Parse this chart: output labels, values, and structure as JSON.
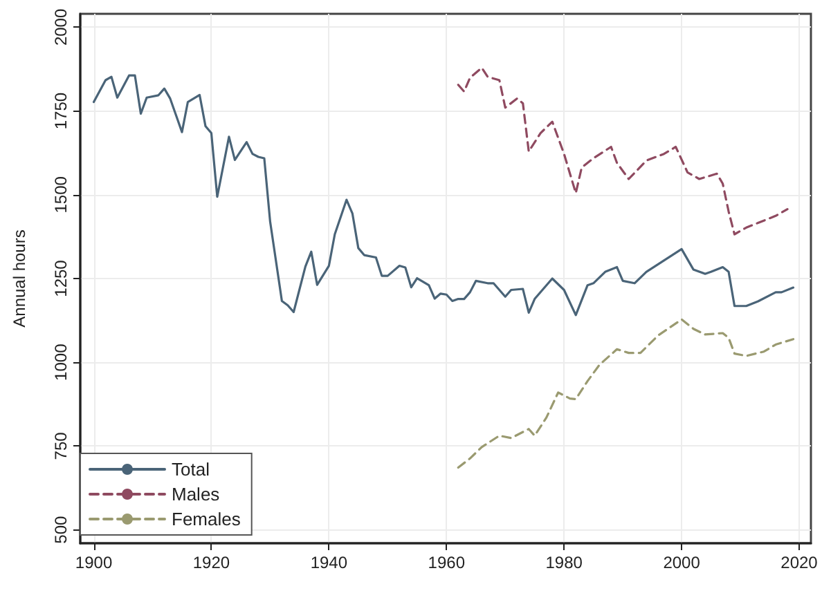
{
  "chart_data": {
    "type": "line",
    "ylabel": "Annual hours",
    "xlim": [
      1897.7,
      2022
    ],
    "xticks": [
      1900,
      1920,
      1940,
      1960,
      1980,
      2000,
      2020
    ],
    "ylim": [
      460,
      2040
    ],
    "yticks": [
      500,
      750,
      1000,
      1250,
      1500,
      1750,
      2000
    ],
    "grid": true,
    "legend": "bottom left",
    "marker": "none",
    "series": [
      {
        "name": "Total",
        "color": "#4a6478",
        "line_style": "solid",
        "x": [
          1900,
          1902,
          1903,
          1904,
          1906,
          1907,
          1908,
          1909,
          1911,
          1912,
          1913,
          1915,
          1916,
          1918,
          1919,
          1920,
          1921,
          1923,
          1924,
          1926,
          1927,
          1928,
          1929,
          1930,
          1932,
          1933,
          1934,
          1936,
          1937,
          1938,
          1940,
          1941,
          1943,
          1944,
          1945,
          1946,
          1948,
          1949,
          1950,
          1952,
          1953,
          1954,
          1955,
          1957,
          1958,
          1959,
          1960,
          1961,
          1962,
          1963,
          1964,
          1965,
          1967,
          1968,
          1970,
          1971,
          1973,
          1974,
          1975,
          1978,
          1980,
          1982,
          1984,
          1985,
          1987,
          1989,
          1990,
          1992,
          1994,
          1997,
          2000,
          2002,
          2004,
          2005,
          2007,
          2008,
          2009,
          2011,
          2013,
          2016,
          2017,
          2019
        ],
        "values": [
          1777,
          1842,
          1852,
          1790,
          1856,
          1856,
          1742,
          1790,
          1797,
          1817,
          1787,
          1687,
          1777,
          1798,
          1705,
          1684,
          1494,
          1673,
          1604,
          1657,
          1622,
          1613,
          1609,
          1420,
          1183,
          1170,
          1150,
          1286,
          1330,
          1231,
          1288,
          1382,
          1485,
          1444,
          1341,
          1320,
          1313,
          1258,
          1258,
          1288,
          1283,
          1224,
          1251,
          1230,
          1190,
          1205,
          1202,
          1183,
          1189,
          1189,
          1209,
          1243,
          1236,
          1236,
          1196,
          1216,
          1219,
          1148,
          1189,
          1250,
          1216,
          1141,
          1230,
          1236,
          1270,
          1284,
          1243,
          1236,
          1270,
          1304,
          1338,
          1277,
          1264,
          1270,
          1284,
          1270,
          1168,
          1168,
          1182,
          1209,
          1209,
          1223
        ]
      },
      {
        "name": "Males",
        "color": "#8f4a60",
        "line_style": "dashed",
        "x": [
          1962,
          1963,
          1964,
          1966,
          1967,
          1969,
          1970,
          1972,
          1973,
          1974,
          1976,
          1978,
          1980,
          1982,
          1983,
          1985,
          1988,
          1989,
          1991,
          1994,
          1997,
          1999,
          2001,
          2003,
          2006,
          2007,
          2008,
          2009,
          2011,
          2013,
          2016,
          2018
        ],
        "values": [
          1828,
          1808,
          1849,
          1879,
          1852,
          1842,
          1760,
          1787,
          1773,
          1629,
          1684,
          1718,
          1622,
          1505,
          1581,
          1609,
          1643,
          1595,
          1547,
          1602,
          1622,
          1643,
          1567,
          1547,
          1563,
          1533,
          1450,
          1382,
          1402,
          1416,
          1437,
          1457
        ]
      },
      {
        "name": "Females",
        "color": "#9a9a70",
        "line_style": "dashed",
        "x": [
          1962,
          1964,
          1966,
          1969,
          1971,
          1974,
          1975,
          1977,
          1979,
          1981,
          1982,
          1984,
          1986,
          1989,
          1991,
          1993,
          1996,
          2000,
          2002,
          2004,
          2007,
          2008,
          2009,
          2011,
          2014,
          2016,
          2019
        ],
        "values": [
          686,
          713,
          747,
          781,
          774,
          801,
          781,
          835,
          910,
          892,
          890,
          944,
          992,
          1039,
          1028,
          1028,
          1080,
          1128,
          1100,
          1083,
          1087,
          1073,
          1026,
          1019,
          1032,
          1053,
          1069
        ]
      }
    ]
  }
}
